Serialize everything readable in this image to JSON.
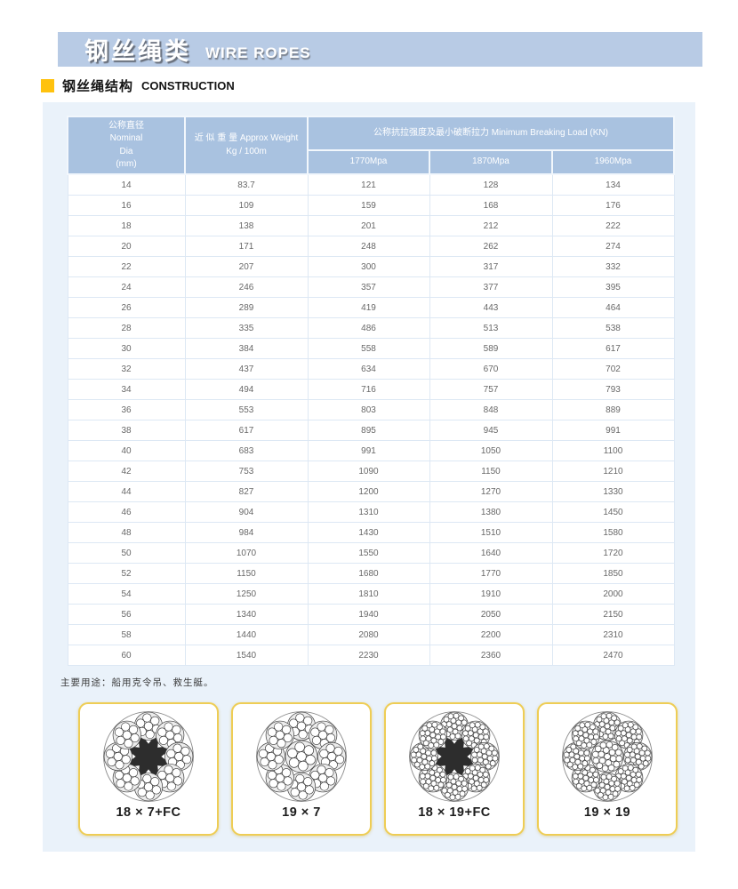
{
  "page": {
    "title_zh": "钢丝绳类",
    "title_en": "WIRE ROPES",
    "section_zh": "钢丝绳结构",
    "section_en": "CONSTRUCTION",
    "note": "主要用途：船用克令吊、救生艇。"
  },
  "colors": {
    "title_bar_bg": "#b8cbe5",
    "bullet_yellow": "#ffc20e",
    "panel_bg": "#eaf2fa",
    "table_header_bg": "#a9c2e0",
    "card_border": "#eecd55"
  },
  "table": {
    "col1_header": [
      "公称直径",
      "Nominal",
      "Dia",
      "(mm)"
    ],
    "col2_header": [
      "近 似 重 量 Approx Weight",
      "Kg / 100m"
    ],
    "group_header": "公称抗拉强度及最小破断拉力 Minimum Breaking Load (KN)",
    "sub_headers": [
      "1770Mpa",
      "1870Mpa",
      "1960Mpa"
    ],
    "rows": [
      [
        "14",
        "83.7",
        "121",
        "128",
        "134"
      ],
      [
        "16",
        "109",
        "159",
        "168",
        "176"
      ],
      [
        "18",
        "138",
        "201",
        "212",
        "222"
      ],
      [
        "20",
        "171",
        "248",
        "262",
        "274"
      ],
      [
        "22",
        "207",
        "300",
        "317",
        "332"
      ],
      [
        "24",
        "246",
        "357",
        "377",
        "395"
      ],
      [
        "26",
        "289",
        "419",
        "443",
        "464"
      ],
      [
        "28",
        "335",
        "486",
        "513",
        "538"
      ],
      [
        "30",
        "384",
        "558",
        "589",
        "617"
      ],
      [
        "32",
        "437",
        "634",
        "670",
        "702"
      ],
      [
        "34",
        "494",
        "716",
        "757",
        "793"
      ],
      [
        "36",
        "553",
        "803",
        "848",
        "889"
      ],
      [
        "38",
        "617",
        "895",
        "945",
        "991"
      ],
      [
        "40",
        "683",
        "991",
        "1050",
        "1100"
      ],
      [
        "42",
        "753",
        "1090",
        "1150",
        "1210"
      ],
      [
        "44",
        "827",
        "1200",
        "1270",
        "1330"
      ],
      [
        "46",
        "904",
        "1310",
        "1380",
        "1450"
      ],
      [
        "48",
        "984",
        "1430",
        "1510",
        "1580"
      ],
      [
        "50",
        "1070",
        "1550",
        "1640",
        "1720"
      ],
      [
        "52",
        "1150",
        "1680",
        "1770",
        "1850"
      ],
      [
        "54",
        "1250",
        "1810",
        "1910",
        "2000"
      ],
      [
        "56",
        "1340",
        "1940",
        "2050",
        "2150"
      ],
      [
        "58",
        "1440",
        "2080",
        "2200",
        "2310"
      ],
      [
        "60",
        "1540",
        "2230",
        "2360",
        "2470"
      ]
    ]
  },
  "ropes": [
    {
      "label": "18 × 7+FC",
      "fiber_core": true,
      "wire_rings": [
        1,
        6
      ]
    },
    {
      "label": "19 × 7",
      "fiber_core": false,
      "wire_rings": [
        1,
        6
      ]
    },
    {
      "label": "18 × 19+FC",
      "fiber_core": true,
      "wire_rings": [
        1,
        6,
        12
      ]
    },
    {
      "label": "19 × 19",
      "fiber_core": false,
      "wire_rings": [
        1,
        6,
        12
      ]
    }
  ]
}
